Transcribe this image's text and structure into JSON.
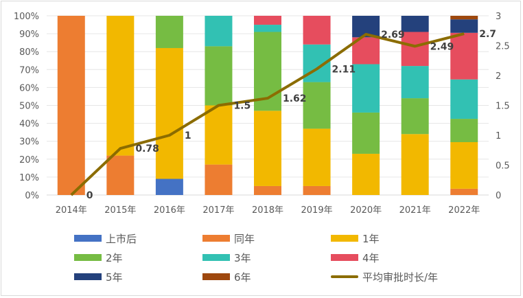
{
  "chart_data": {
    "type": "bar",
    "stacked": true,
    "categories": [
      "2014年",
      "2015年",
      "2016年",
      "2017年",
      "2018年",
      "2019年",
      "2020年",
      "2021年",
      "2022年"
    ],
    "series": [
      {
        "name": "上市后",
        "color": "#4472C4",
        "values": [
          0,
          0,
          9,
          0,
          0,
          0,
          0,
          0,
          0
        ]
      },
      {
        "name": "同年",
        "color": "#ED7D31",
        "values": [
          100,
          22,
          0,
          17,
          5,
          5,
          0,
          0,
          3.5
        ]
      },
      {
        "name": "1年",
        "color": "#F2B800",
        "values": [
          0,
          78,
          73,
          33,
          42,
          32,
          23,
          34,
          26
        ]
      },
      {
        "name": "2年",
        "color": "#76BC43",
        "values": [
          0,
          0,
          18,
          33,
          44,
          26,
          23,
          20,
          13
        ]
      },
      {
        "name": "3年",
        "color": "#32C1B3",
        "values": [
          0,
          0,
          0,
          17,
          4,
          21,
          27,
          18,
          22
        ]
      },
      {
        "name": "4年",
        "color": "#E64D5E",
        "values": [
          0,
          0,
          0,
          0,
          5,
          16,
          15,
          19,
          26
        ]
      },
      {
        "name": "5年",
        "color": "#24417C",
        "values": [
          0,
          0,
          0,
          0,
          0,
          0,
          12,
          9,
          7.5
        ]
      },
      {
        "name": "6年",
        "color": "#9E480E",
        "values": [
          0,
          0,
          0,
          0,
          0,
          0,
          0,
          0,
          2
        ]
      }
    ],
    "line": {
      "name": "平均审批时长/年",
      "color": "#8B6C00",
      "axis": "right",
      "values": [
        0,
        0.78,
        1,
        1.5,
        1.62,
        2.11,
        2.69,
        2.49,
        2.7
      ],
      "labels": [
        "0",
        "0.78",
        "1",
        "1.5",
        "1.62",
        "2.11",
        "2.69",
        "2.49",
        "2.7"
      ]
    },
    "y_left": {
      "ylim": [
        0,
        100
      ],
      "ticks": [
        "0%",
        "10%",
        "20%",
        "30%",
        "40%",
        "50%",
        "60%",
        "70%",
        "80%",
        "90%",
        "100%"
      ]
    },
    "y_right": {
      "ylim": [
        0,
        3
      ],
      "ticks": [
        "0",
        "0.5",
        "1",
        "1.5",
        "2",
        "2.5",
        "3"
      ]
    },
    "title": "",
    "xlabel": "",
    "ylabel": "",
    "grid": true,
    "legend_position": "bottom"
  }
}
